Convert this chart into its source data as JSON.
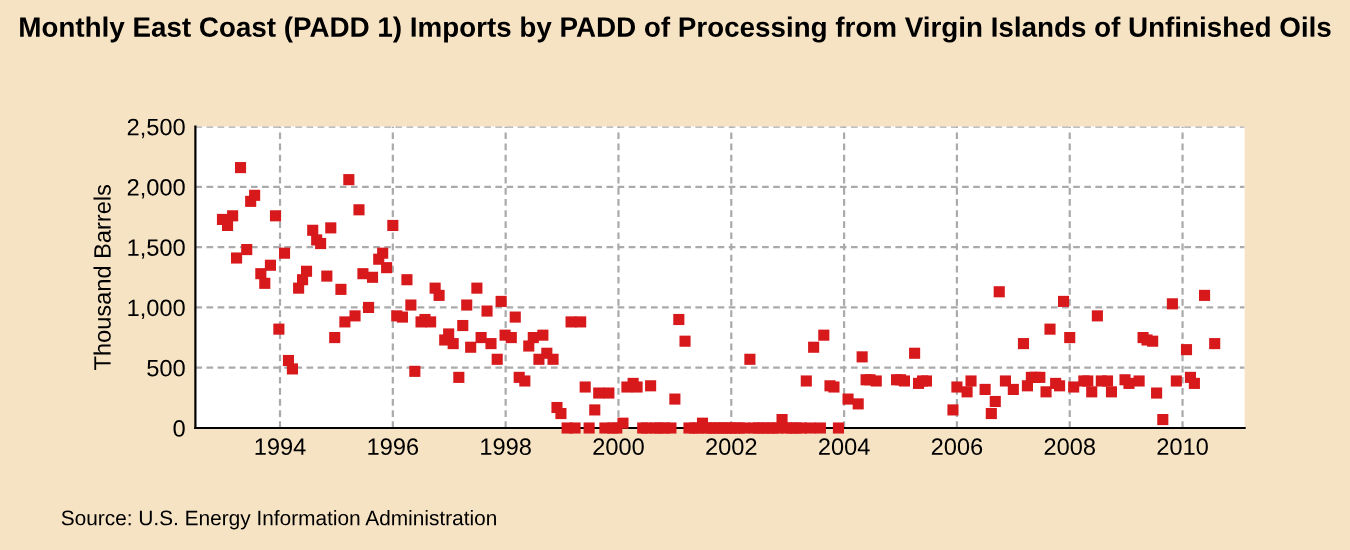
{
  "chart_data": {
    "type": "scatter",
    "title": "Monthly East Coast (PADD 1) Imports by PADD of Processing from Virgin Islands of Unfinished Oils",
    "ylabel": "Thousand Barrels",
    "annotations": [
      "Source: U.S. Energy Information Administration"
    ],
    "x": [
      1992.98,
      1993.07,
      1993.16,
      1993.23,
      1993.3,
      1993.41,
      1993.48,
      1993.55,
      1993.66,
      1993.73,
      1993.83,
      1993.92,
      1993.98,
      1994.08,
      1994.15,
      1994.22,
      1994.33,
      1994.4,
      1994.47,
      1994.58,
      1994.65,
      1994.72,
      1994.83,
      1994.9,
      1994.97,
      1995.08,
      1995.15,
      1995.22,
      1995.33,
      1995.4,
      1995.47,
      1995.57,
      1995.64,
      1995.75,
      1995.82,
      1995.89,
      1996.0,
      1996.07,
      1996.17,
      1996.25,
      1996.32,
      1996.39,
      1996.5,
      1996.57,
      1996.67,
      1996.75,
      1996.82,
      1996.92,
      1996.99,
      1997.07,
      1997.17,
      1997.24,
      1997.31,
      1997.38,
      1997.49,
      1997.565,
      1997.67,
      1997.74,
      1997.85,
      1997.92,
      1997.99,
      1998.1,
      1998.17,
      1998.24,
      1998.34,
      1998.41,
      1998.49,
      1998.59,
      1998.66,
      1998.73,
      1998.84,
      1998.91,
      1998.98,
      1999.09,
      1999.16,
      1999.23,
      1999.33,
      1999.41,
      1999.48,
      1999.58,
      1999.65,
      1999.76,
      1999.83,
      1999.9,
      1999.97,
      2000.08,
      2000.15,
      2000.26,
      2000.33,
      2000.43,
      2000.5,
      2000.57,
      2000.65,
      2000.72,
      2000.82,
      2000.93,
      2001.0,
      2001.07,
      2001.18,
      2001.25,
      2001.35,
      2001.42,
      2001.49,
      2001.56,
      2001.64,
      2001.71,
      2001.78,
      2001.85,
      2001.92,
      2001.99,
      2002.06,
      2002.14,
      2002.23,
      2002.33,
      2002.4,
      2002.48,
      2002.57,
      2002.65,
      2002.74,
      2002.82,
      2002.9,
      2002.98,
      2003.07,
      2003.15,
      2003.24,
      2003.33,
      2003.4,
      2003.46,
      2003.58,
      2003.64,
      2003.75,
      2003.82,
      2003.9,
      2004.07,
      2004.25,
      2004.32,
      2004.39,
      2004.46,
      2004.57,
      2004.93,
      2005.0,
      2005.07,
      2005.25,
      2005.32,
      2005.39,
      2005.46,
      2005.93,
      2006.0,
      2006.18,
      2006.25,
      2006.5,
      2006.61,
      2006.68,
      2006.75,
      2006.86,
      2007.0,
      2007.18,
      2007.25,
      2007.32,
      2007.39,
      2007.47,
      2007.58,
      2007.65,
      2007.75,
      2007.82,
      2007.89,
      2008.0,
      2008.07,
      2008.25,
      2008.32,
      2008.39,
      2008.49,
      2008.56,
      2008.67,
      2008.74,
      2008.98,
      2009.05,
      2009.23,
      2009.3,
      2009.37,
      2009.47,
      2009.54,
      2009.65,
      2009.82,
      2009.89,
      2010.07,
      2010.14,
      2010.21,
      2010.39,
      2010.57
    ],
    "series": [
      {
        "color": "#d7191c",
        "values": [
          1730,
          1680,
          1760,
          1410,
          2160,
          1480,
          1880,
          1930,
          1280,
          1200,
          1350,
          1760,
          820,
          1450,
          560,
          490,
          1160,
          1230,
          1300,
          1640,
          1560,
          1530,
          1260,
          1660,
          750,
          1150,
          880,
          2060,
          930,
          1810,
          1280,
          1000,
          1250,
          1400,
          1450,
          1330,
          1680,
          930,
          920,
          1230,
          1020,
          470,
          880,
          900,
          880,
          1160,
          1100,
          730,
          780,
          700,
          420,
          850,
          1020,
          670,
          1160,
          750,
          970,
          700,
          570,
          1050,
          770,
          750,
          920,
          420,
          390,
          680,
          750,
          570,
          770,
          620,
          570,
          170,
          120,
          0,
          880,
          0,
          880,
          340,
          0,
          150,
          290,
          0,
          290,
          0,
          0,
          40,
          340,
          370,
          340,
          0,
          0,
          350,
          0,
          0,
          0,
          0,
          240,
          900,
          720,
          0,
          0,
          0,
          40,
          0,
          0,
          0,
          0,
          0,
          0,
          0,
          0,
          0,
          0,
          570,
          0,
          0,
          0,
          0,
          0,
          0,
          70,
          0,
          0,
          0,
          0,
          390,
          0,
          670,
          0,
          770,
          350,
          340,
          0,
          240,
          200,
          590,
          400,
          400,
          390,
          400,
          400,
          390,
          620,
          370,
          390,
          390,
          150,
          340,
          300,
          390,
          320,
          120,
          220,
          1130,
          390,
          320,
          700,
          350,
          420,
          420,
          420,
          300,
          820,
          370,
          350,
          1050,
          750,
          340,
          390,
          390,
          300,
          930,
          390,
          390,
          300,
          400,
          370,
          390,
          750,
          730,
          720,
          290,
          70,
          1030,
          390,
          650,
          420,
          370,
          1100,
          700
        ]
      }
    ],
    "xlim": [
      1992.5,
      2011.1
    ],
    "xticks": [
      1994,
      1996,
      1998,
      2000,
      2002,
      2004,
      2006,
      2008,
      2010
    ],
    "ylim": [
      0,
      2500
    ],
    "yticks": [
      0,
      {
        "value": 500,
        "label": "500"
      },
      {
        "value": 1000,
        "label": "1,000"
      },
      {
        "value": 1500,
        "label": "1,500"
      },
      {
        "value": 2000,
        "label": "2,000"
      },
      {
        "value": 2500,
        "label": "2,500"
      }
    ],
    "grid": true,
    "marker": "square"
  }
}
